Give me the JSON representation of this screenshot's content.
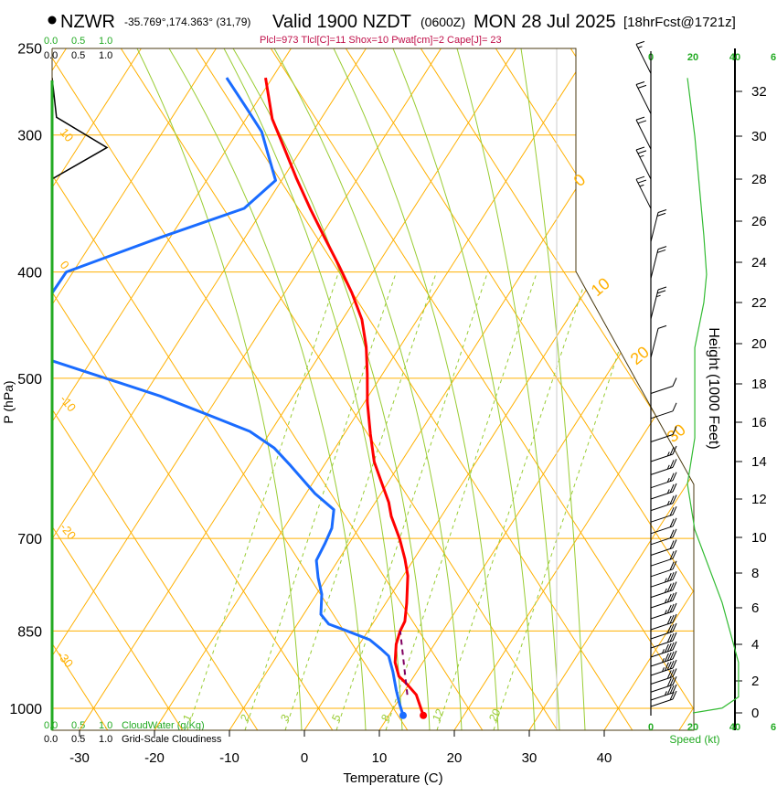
{
  "header": {
    "station_label": "NZWR",
    "coords": "-35.769°,174.363° (31,79)",
    "valid": "Valid 1900 NZDT",
    "utc": "(0600Z)",
    "date": "MON 28 Jul 2025",
    "forecast": "[18hrFcst@1721z]",
    "indices": "Plcl=973 Tlcl[C]=11 Shox=10 Pwat[cm]=2 Cape[J]= 23"
  },
  "colors": {
    "temperature": "#ff0000",
    "dewpoint": "#1a6cff",
    "parcel": "#800060",
    "isotherm": "#ffb000",
    "moist_adiabat": "#99cc33",
    "wind_speed": "#33bb33",
    "axis_green": "#22aa22",
    "indices": "#c0104a"
  },
  "cloud_scale": {
    "top_green": [
      "0.0",
      "0.5",
      "1.0"
    ],
    "top_black": [
      "0.0",
      "0.5",
      "1.0"
    ],
    "bottom_green": [
      "0.0",
      "0.5",
      "1.0"
    ],
    "bottom_green_label": "CloudWater (g/Kg)",
    "bottom_black": [
      "0.0",
      "0.5",
      "1.0"
    ],
    "bottom_black_label": "Grid-Scale Cloudiness"
  },
  "chart_data": {
    "type": "line",
    "subtype": "skew-t log-p",
    "xlabel": "Temperature (C)",
    "ylabel": "P (hPa)",
    "y2label": "Height (1000 Feet)",
    "speed_label": "Speed (kt)",
    "x_ticks": [
      "-30",
      "-20",
      "-10",
      "0",
      "10",
      "20",
      "30",
      "40"
    ],
    "x_tick_values": [
      -30,
      -20,
      -10,
      0,
      10,
      20,
      30,
      40
    ],
    "pressure_ticks": [
      "250",
      "300",
      "400",
      "500",
      "700",
      "850",
      "1000"
    ],
    "pressure_values": [
      250,
      300,
      400,
      500,
      700,
      850,
      1000
    ],
    "height_ticks": [
      "0",
      "2",
      "4",
      "6",
      "8",
      "10",
      "12",
      "14",
      "16",
      "18",
      "20",
      "22",
      "24",
      "26",
      "28",
      "30",
      "32"
    ],
    "speed_ticks": [
      "0",
      "20",
      "40",
      "6"
    ],
    "isotherm_labels_left": [
      "10",
      "0",
      "-10",
      "-20",
      "-30"
    ],
    "isotherm_labels_right": [
      "0",
      "10",
      "20",
      "30"
    ],
    "mixing_ratio_labels": [
      "1",
      "2",
      "3",
      "5",
      "8",
      "12",
      "20"
    ],
    "temperature": [
      [
        1015,
        14.6
      ],
      [
        972,
        11.9
      ],
      [
        950,
        9.7
      ],
      [
        935,
        8.0
      ],
      [
        908,
        6.3
      ],
      [
        874,
        4.9
      ],
      [
        850,
        4.3
      ],
      [
        833,
        4.1
      ],
      [
        802,
        2.8
      ],
      [
        757,
        0.6
      ],
      [
        731,
        -1.2
      ],
      [
        701,
        -3.6
      ],
      [
        668,
        -6.7
      ],
      [
        649,
        -8.2
      ],
      [
        625,
        -10.6
      ],
      [
        596,
        -13.6
      ],
      [
        562,
        -16.5
      ],
      [
        526,
        -19.6
      ],
      [
        496,
        -22.0
      ],
      [
        468,
        -24.5
      ],
      [
        442,
        -27.4
      ],
      [
        418,
        -31.0
      ],
      [
        394,
        -35.2
      ],
      [
        372,
        -39.4
      ],
      [
        351,
        -43.6
      ],
      [
        329,
        -48.1
      ],
      [
        307,
        -52.7
      ],
      [
        290,
        -56.5
      ],
      [
        266,
        -60.9
      ]
    ],
    "dewpoint_segments": [
      [
        [
          1015,
          11.9
        ],
        [
          990,
          10.4
        ],
        [
          962,
          8.8
        ],
        [
          926,
          6.8
        ],
        [
          896,
          4.9
        ],
        [
          883,
          3.3
        ],
        [
          866,
          1.0
        ],
        [
          850,
          -2.8
        ],
        [
          838,
          -5.8
        ],
        [
          821,
          -7.7
        ],
        [
          787,
          -9.3
        ],
        [
          760,
          -11.2
        ],
        [
          733,
          -12.9
        ],
        [
          708,
          -13.2
        ],
        [
          685,
          -13.6
        ],
        [
          659,
          -14.9
        ],
        [
          637,
          -18.8
        ],
        [
          601,
          -24.4
        ],
        [
          579,
          -28.1
        ],
        [
          559,
          -32.8
        ],
        [
          541,
          -39.4
        ],
        [
          519,
          -47.8
        ],
        [
          482,
          -65.2
        ]
      ],
      [
        [
          418,
          -71.0
        ],
        [
          400,
          -70.9
        ],
        [
          372,
          -61.3
        ],
        [
          350,
          -52.6
        ],
        [
          330,
          -50.8
        ],
        [
          312,
          -54.1
        ],
        [
          298,
          -56.8
        ],
        [
          284,
          -60.7
        ],
        [
          266,
          -66.1
        ]
      ]
    ],
    "parcel": [
      [
        972,
        10.7
      ],
      [
        850,
        4.3
      ]
    ],
    "cloudiness": [
      [
        266,
        0
      ],
      [
        289,
        0.08
      ],
      [
        308,
        1.0
      ],
      [
        329,
        0
      ]
    ],
    "wind_speed_profile": [
      [
        32.6,
        17.4
      ],
      [
        30,
        20.9
      ],
      [
        25.3,
        25.2
      ],
      [
        23.4,
        26.5
      ],
      [
        22,
        25.2
      ],
      [
        19.8,
        20.9
      ],
      [
        15.2,
        20.9
      ],
      [
        12.8,
        17.4
      ],
      [
        10.4,
        20.9
      ],
      [
        6.3,
        33.9
      ],
      [
        3.0,
        41.7
      ],
      [
        1.0,
        41.7
      ],
      [
        0.3,
        33.9
      ],
      [
        0,
        20
      ]
    ],
    "wind_barbs_kft": [
      32.8,
      31,
      29.4,
      28,
      26.6,
      25,
      23.2,
      21.2,
      19.3,
      17.5,
      16.2,
      15.0,
      14.0,
      13.3,
      12.6,
      12.0,
      11.4,
      10.8,
      10.2,
      9.6,
      9.0,
      8.4,
      7.8,
      7.2,
      6.6,
      6.0,
      5.4,
      4.8,
      4.3,
      3.8,
      3.3,
      2.8,
      2.3,
      1.8,
      1.3,
      0.8,
      0.4
    ],
    "wind_barbs_kt": [
      5,
      20,
      20,
      15,
      15,
      20,
      20,
      15,
      10,
      10,
      10,
      10,
      15,
      15,
      15,
      15,
      15,
      20,
      20,
      20,
      20,
      20,
      20,
      25,
      25,
      25,
      25,
      30,
      30,
      30,
      35,
      35,
      35,
      30,
      30,
      25,
      20
    ]
  }
}
